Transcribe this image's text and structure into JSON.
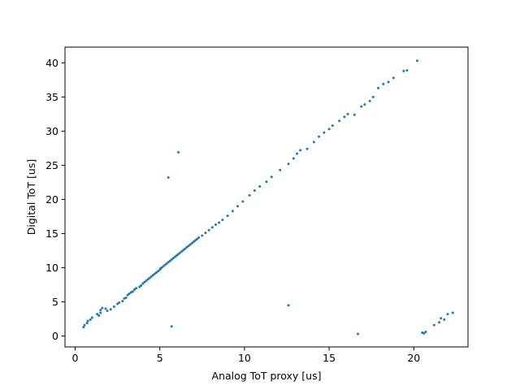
{
  "chart_data": {
    "type": "scatter",
    "title": "",
    "xlabel": "Analog ToT proxy [us]",
    "ylabel": "Digital ToT [us]",
    "xlim": [
      -0.6,
      23.2
    ],
    "ylim": [
      -1.6,
      42.3
    ],
    "xticks": [
      0,
      5,
      10,
      15,
      20
    ],
    "yticks": [
      0,
      5,
      10,
      15,
      20,
      25,
      30,
      35,
      40
    ],
    "grid": false,
    "legend": "none",
    "marker_color": "#1f77b4",
    "series": [
      {
        "points": [
          [
            0.5,
            1.3
          ],
          [
            0.55,
            1.6
          ],
          [
            0.7,
            1.9
          ],
          [
            0.75,
            2.2
          ],
          [
            0.9,
            2.4
          ],
          [
            1.0,
            2.7
          ],
          [
            1.3,
            3.2
          ],
          [
            1.4,
            3.0
          ],
          [
            1.5,
            3.4
          ],
          [
            1.5,
            3.8
          ],
          [
            1.6,
            4.1
          ],
          [
            1.8,
            4.0
          ],
          [
            1.9,
            3.7
          ],
          [
            2.1,
            3.9
          ],
          [
            2.3,
            4.3
          ],
          [
            2.5,
            4.7
          ],
          [
            2.6,
            4.9
          ],
          [
            2.8,
            5.1
          ],
          [
            2.9,
            5.5
          ],
          [
            3.0,
            5.6
          ],
          [
            3.1,
            6.0
          ],
          [
            3.2,
            6.2
          ],
          [
            3.3,
            6.4
          ],
          [
            3.4,
            6.5
          ],
          [
            3.5,
            6.8
          ],
          [
            3.6,
            7.0
          ],
          [
            3.8,
            7.2
          ],
          [
            3.9,
            7.4
          ],
          [
            4.0,
            7.7
          ],
          [
            4.1,
            7.9
          ],
          [
            4.2,
            8.1
          ],
          [
            4.3,
            8.3
          ],
          [
            4.4,
            8.5
          ],
          [
            4.5,
            8.7
          ],
          [
            4.6,
            8.9
          ],
          [
            4.7,
            9.1
          ],
          [
            4.8,
            9.3
          ],
          [
            4.9,
            9.5
          ],
          [
            5.0,
            9.7
          ],
          [
            5.05,
            9.9
          ],
          [
            5.1,
            10.0
          ],
          [
            5.2,
            10.2
          ],
          [
            5.3,
            10.4
          ],
          [
            5.4,
            10.6
          ],
          [
            5.5,
            10.8
          ],
          [
            5.6,
            11.0
          ],
          [
            5.7,
            11.2
          ],
          [
            5.8,
            11.4
          ],
          [
            5.9,
            11.6
          ],
          [
            6.0,
            11.8
          ],
          [
            6.1,
            12.0
          ],
          [
            6.2,
            12.2
          ],
          [
            6.3,
            12.4
          ],
          [
            6.4,
            12.6
          ],
          [
            6.5,
            12.8
          ],
          [
            6.6,
            13.0
          ],
          [
            6.7,
            13.2
          ],
          [
            6.8,
            13.4
          ],
          [
            6.9,
            13.6
          ],
          [
            7.0,
            13.8
          ],
          [
            7.1,
            14.0
          ],
          [
            7.2,
            14.2
          ],
          [
            7.3,
            14.4
          ],
          [
            7.5,
            14.7
          ],
          [
            7.7,
            15.1
          ],
          [
            7.9,
            15.5
          ],
          [
            8.1,
            15.9
          ],
          [
            8.3,
            16.3
          ],
          [
            8.5,
            16.6
          ],
          [
            8.7,
            17.0
          ],
          [
            9.0,
            17.6
          ],
          [
            9.3,
            18.3
          ],
          [
            9.6,
            19.0
          ],
          [
            9.9,
            19.7
          ],
          [
            10.3,
            20.6
          ],
          [
            10.6,
            21.3
          ],
          [
            10.9,
            21.9
          ],
          [
            11.3,
            22.6
          ],
          [
            11.6,
            23.3
          ],
          [
            12.1,
            24.3
          ],
          [
            12.6,
            25.2
          ],
          [
            12.9,
            26.0
          ],
          [
            13.1,
            26.7
          ],
          [
            13.3,
            27.2
          ],
          [
            13.7,
            27.4
          ],
          [
            14.1,
            28.4
          ],
          [
            14.4,
            29.2
          ],
          [
            14.7,
            29.8
          ],
          [
            15.0,
            30.3
          ],
          [
            15.2,
            30.8
          ],
          [
            15.6,
            31.5
          ],
          [
            15.9,
            32.1
          ],
          [
            16.1,
            32.5
          ],
          [
            16.5,
            32.4
          ],
          [
            16.9,
            33.6
          ],
          [
            17.1,
            33.9
          ],
          [
            17.4,
            34.4
          ],
          [
            17.6,
            35.0
          ],
          [
            17.9,
            36.3
          ],
          [
            18.2,
            36.9
          ],
          [
            18.5,
            37.2
          ],
          [
            18.8,
            37.8
          ],
          [
            19.4,
            38.8
          ],
          [
            19.6,
            38.9
          ],
          [
            20.2,
            40.3
          ],
          [
            5.5,
            23.2
          ],
          [
            6.1,
            26.9
          ],
          [
            5.7,
            1.4
          ],
          [
            12.6,
            4.5
          ],
          [
            16.7,
            0.3
          ],
          [
            20.5,
            0.5
          ],
          [
            20.6,
            0.4
          ],
          [
            20.7,
            0.6
          ],
          [
            21.2,
            1.6
          ],
          [
            21.5,
            2.0
          ],
          [
            21.6,
            2.6
          ],
          [
            21.8,
            2.4
          ],
          [
            22.0,
            3.2
          ],
          [
            22.3,
            3.4
          ]
        ]
      }
    ]
  }
}
